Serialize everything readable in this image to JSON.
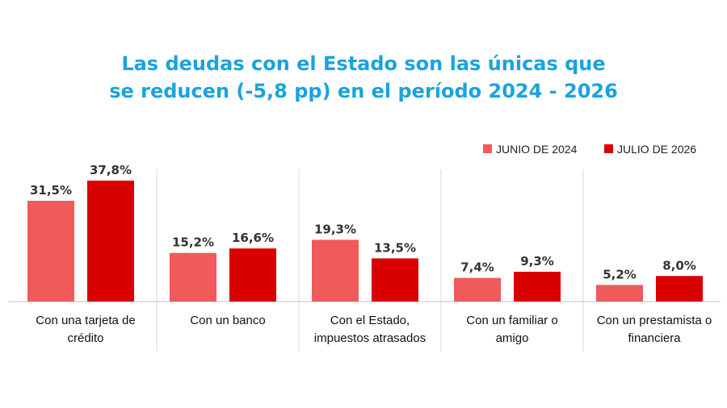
{
  "title_lines": [
    "Las deudas con el Estado son las únicas que",
    "se reducen (-5,8 pp) en el período 2024 - 2026"
  ],
  "colors": {
    "junio": "#f05a5a",
    "julio": "#d90000",
    "title": "#1aa3df"
  },
  "chart_data": {
    "type": "bar",
    "categories": [
      [
        "Con una tarjeta de",
        "crédito"
      ],
      [
        "Con un banco"
      ],
      [
        "Con el Estado,",
        "impuestos atrasados"
      ],
      [
        "Con un familiar o",
        "amigo"
      ],
      [
        "Con un prestamista o",
        "financiera"
      ]
    ],
    "series": [
      {
        "name": "JUNIO DE 2024",
        "values": [
          31.5,
          15.2,
          19.3,
          7.4,
          5.2
        ],
        "labels": [
          "31,5%",
          "15,2%",
          "19,3%",
          "7,4%",
          "5,2%"
        ]
      },
      {
        "name": "JULIO DE 2026",
        "values": [
          37.8,
          16.6,
          13.5,
          9.3,
          8.0
        ],
        "labels": [
          "37,8%",
          "16,6%",
          "13,5%",
          "9,3%",
          "8,0%"
        ]
      }
    ],
    "ylim": [
      0,
      40
    ],
    "legend": "top-right",
    "grid": false
  }
}
